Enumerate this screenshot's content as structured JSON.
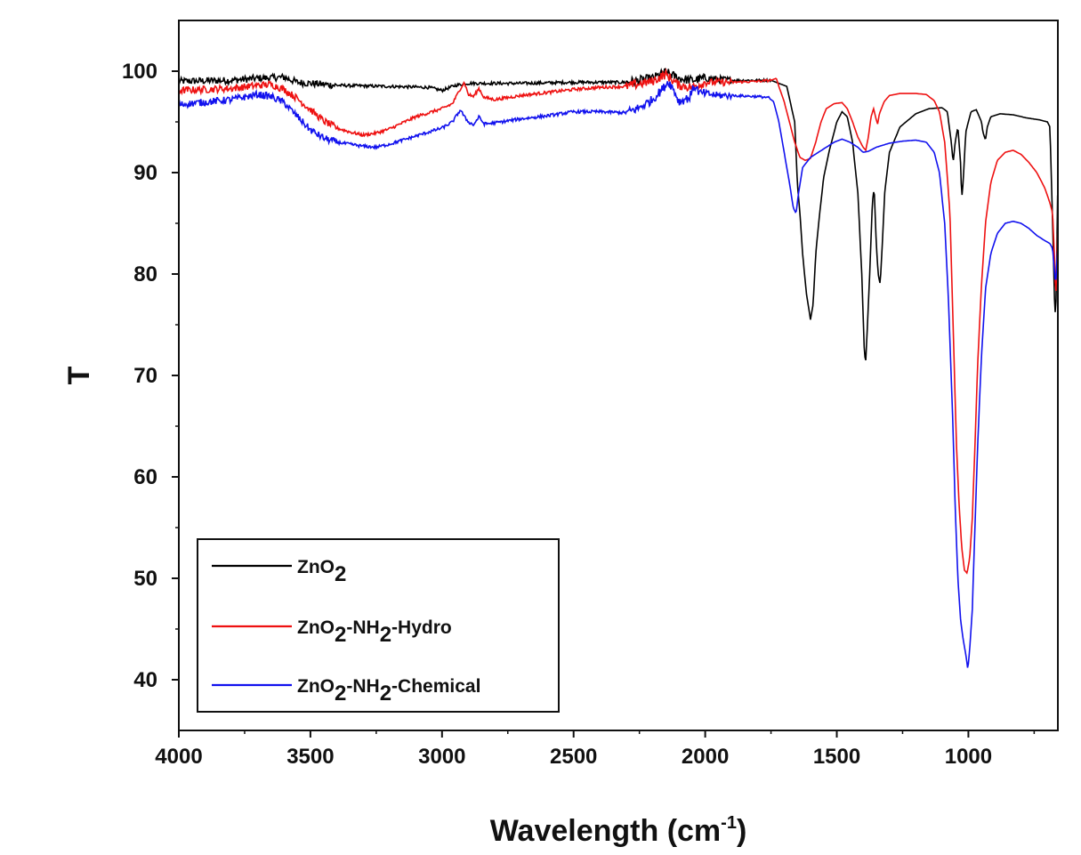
{
  "chart_data": {
    "type": "line",
    "title": "",
    "xlabel": {
      "main": "Wavelength (cm",
      "sup": "-1",
      "tail": ")"
    },
    "ylabel": "T",
    "xlim": [
      4000,
      660
    ],
    "ylim": [
      35,
      105
    ],
    "x_reversed": true,
    "x_ticks": [
      4000,
      3500,
      3000,
      2500,
      2000,
      1500,
      1000
    ],
    "y_ticks": [
      40,
      50,
      60,
      70,
      80,
      90,
      100
    ],
    "grid": false,
    "legend_position": "bottom-left",
    "series": [
      {
        "name": {
          "parts": [
            [
              "ZnO",
              ""
            ],
            [
              "2",
              "sub"
            ]
          ]
        },
        "color": "#000000",
        "points": [
          [
            4000,
            99
          ],
          [
            3800,
            99.1
          ],
          [
            3700,
            99.3
          ],
          [
            3600,
            99.4
          ],
          [
            3550,
            98.9
          ],
          [
            3400,
            98.6
          ],
          [
            3200,
            98.5
          ],
          [
            3050,
            98.4
          ],
          [
            3000,
            98.1
          ],
          [
            2950,
            98.6
          ],
          [
            2900,
            98.8
          ],
          [
            2700,
            98.8
          ],
          [
            2500,
            98.9
          ],
          [
            2300,
            98.9
          ],
          [
            2200,
            99.3
          ],
          [
            2150,
            99.9
          ],
          [
            2100,
            99.3
          ],
          [
            2050,
            99.1
          ],
          [
            2000,
            99.3
          ],
          [
            1900,
            99.1
          ],
          [
            1750,
            99.1
          ],
          [
            1690,
            98.5
          ],
          [
            1660,
            95
          ],
          [
            1650,
            89
          ],
          [
            1640,
            86
          ],
          [
            1630,
            82
          ],
          [
            1615,
            78
          ],
          [
            1600,
            75.5
          ],
          [
            1590,
            77
          ],
          [
            1580,
            82
          ],
          [
            1565,
            86
          ],
          [
            1550,
            89.5
          ],
          [
            1530,
            92
          ],
          [
            1500,
            95
          ],
          [
            1480,
            96
          ],
          [
            1460,
            95.5
          ],
          [
            1440,
            93
          ],
          [
            1420,
            88
          ],
          [
            1405,
            80
          ],
          [
            1395,
            72
          ],
          [
            1390,
            71.5
          ],
          [
            1385,
            74
          ],
          [
            1375,
            80
          ],
          [
            1365,
            87
          ],
          [
            1358,
            88.5
          ],
          [
            1350,
            83
          ],
          [
            1343,
            80
          ],
          [
            1335,
            79
          ],
          [
            1327,
            83
          ],
          [
            1318,
            88
          ],
          [
            1300,
            92
          ],
          [
            1260,
            94.5
          ],
          [
            1200,
            95.8
          ],
          [
            1150,
            96.3
          ],
          [
            1100,
            96.4
          ],
          [
            1080,
            96
          ],
          [
            1065,
            93
          ],
          [
            1058,
            91
          ],
          [
            1050,
            93
          ],
          [
            1040,
            94.5
          ],
          [
            1030,
            91
          ],
          [
            1025,
            87.5
          ],
          [
            1020,
            89
          ],
          [
            1010,
            94
          ],
          [
            990,
            96
          ],
          [
            970,
            96.2
          ],
          [
            950,
            95
          ],
          [
            945,
            94
          ],
          [
            935,
            93.2
          ],
          [
            928,
            94.5
          ],
          [
            915,
            95.5
          ],
          [
            880,
            95.8
          ],
          [
            830,
            95.7
          ],
          [
            780,
            95.4
          ],
          [
            730,
            95.2
          ],
          [
            700,
            95
          ],
          [
            690,
            94.5
          ],
          [
            680,
            85
          ],
          [
            672,
            76.5
          ],
          [
            668,
            76
          ],
          [
            665,
            80
          ],
          [
            662,
            86
          ],
          [
            660,
            89.5
          ]
        ]
      },
      {
        "name": {
          "parts": [
            [
              "ZnO",
              ""
            ],
            [
              "2",
              "sub"
            ],
            [
              "-NH",
              ""
            ],
            [
              "2",
              "sub"
            ],
            [
              "-Hydro",
              ""
            ]
          ]
        },
        "color": "#ee1111",
        "points": [
          [
            4000,
            98.1
          ],
          [
            3800,
            98.3
          ],
          [
            3700,
            98.6
          ],
          [
            3650,
            98.7
          ],
          [
            3600,
            98.2
          ],
          [
            3550,
            97.3
          ],
          [
            3500,
            96.2
          ],
          [
            3450,
            95.1
          ],
          [
            3400,
            94.4
          ],
          [
            3350,
            94
          ],
          [
            3300,
            93.7
          ],
          [
            3250,
            93.9
          ],
          [
            3200,
            94.3
          ],
          [
            3150,
            94.9
          ],
          [
            3100,
            95.5
          ],
          [
            3050,
            95.9
          ],
          [
            3000,
            96.3
          ],
          [
            2960,
            96.8
          ],
          [
            2930,
            98.3
          ],
          [
            2915,
            98.9
          ],
          [
            2900,
            97.7
          ],
          [
            2880,
            97.5
          ],
          [
            2860,
            98.3
          ],
          [
            2840,
            97.4
          ],
          [
            2800,
            97.2
          ],
          [
            2700,
            97.6
          ],
          [
            2600,
            97.9
          ],
          [
            2500,
            98.2
          ],
          [
            2400,
            98.4
          ],
          [
            2300,
            98.5
          ],
          [
            2200,
            99
          ],
          [
            2150,
            99.7
          ],
          [
            2100,
            98.6
          ],
          [
            2050,
            98.4
          ],
          [
            2000,
            98.9
          ],
          [
            1900,
            98.9
          ],
          [
            1800,
            99
          ],
          [
            1750,
            99.1
          ],
          [
            1730,
            99.3
          ],
          [
            1720,
            98.5
          ],
          [
            1700,
            97
          ],
          [
            1680,
            95
          ],
          [
            1660,
            93
          ],
          [
            1640,
            91.5
          ],
          [
            1620,
            91.2
          ],
          [
            1600,
            91.4
          ],
          [
            1580,
            93
          ],
          [
            1560,
            95
          ],
          [
            1540,
            96.3
          ],
          [
            1510,
            96.8
          ],
          [
            1480,
            96.9
          ],
          [
            1460,
            96.3
          ],
          [
            1440,
            95
          ],
          [
            1420,
            93.5
          ],
          [
            1400,
            92.5
          ],
          [
            1390,
            92.2
          ],
          [
            1380,
            93.5
          ],
          [
            1370,
            95.5
          ],
          [
            1360,
            96.3
          ],
          [
            1350,
            95.2
          ],
          [
            1345,
            94.8
          ],
          [
            1338,
            95.8
          ],
          [
            1320,
            97
          ],
          [
            1300,
            97.6
          ],
          [
            1260,
            97.8
          ],
          [
            1200,
            97.8
          ],
          [
            1160,
            97.7
          ],
          [
            1130,
            97.1
          ],
          [
            1110,
            96
          ],
          [
            1090,
            93
          ],
          [
            1070,
            86
          ],
          [
            1055,
            72
          ],
          [
            1045,
            63
          ],
          [
            1035,
            57
          ],
          [
            1025,
            53
          ],
          [
            1015,
            50.8
          ],
          [
            1005,
            50.5
          ],
          [
            995,
            52
          ],
          [
            985,
            56
          ],
          [
            975,
            63
          ],
          [
            965,
            71
          ],
          [
            950,
            79
          ],
          [
            935,
            85
          ],
          [
            915,
            89
          ],
          [
            890,
            91.2
          ],
          [
            860,
            92
          ],
          [
            830,
            92.2
          ],
          [
            800,
            91.8
          ],
          [
            770,
            91
          ],
          [
            740,
            90
          ],
          [
            710,
            88.5
          ],
          [
            690,
            87
          ],
          [
            680,
            86
          ],
          [
            672,
            81
          ],
          [
            668,
            77.5
          ],
          [
            665,
            80
          ],
          [
            662,
            83
          ],
          [
            660,
            85
          ]
        ]
      },
      {
        "name": {
          "parts": [
            [
              "ZnO",
              ""
            ],
            [
              "2",
              "sub"
            ],
            [
              "-NH",
              ""
            ],
            [
              "2",
              "sub"
            ],
            [
              "-Chemical",
              ""
            ]
          ]
        },
        "color": "#1111ee",
        "points": [
          [
            4000,
            96.7
          ],
          [
            3800,
            97.2
          ],
          [
            3700,
            97.7
          ],
          [
            3650,
            97.5
          ],
          [
            3600,
            96.9
          ],
          [
            3560,
            95.8
          ],
          [
            3500,
            94.2
          ],
          [
            3450,
            93.4
          ],
          [
            3400,
            93
          ],
          [
            3350,
            92.8
          ],
          [
            3300,
            92.6
          ],
          [
            3250,
            92.5
          ],
          [
            3200,
            92.8
          ],
          [
            3150,
            93.2
          ],
          [
            3100,
            93.6
          ],
          [
            3050,
            94
          ],
          [
            3000,
            94.4
          ],
          [
            2960,
            95
          ],
          [
            2930,
            96.2
          ],
          [
            2915,
            95.5
          ],
          [
            2900,
            95
          ],
          [
            2880,
            94.7
          ],
          [
            2860,
            95.5
          ],
          [
            2840,
            94.8
          ],
          [
            2800,
            94.9
          ],
          [
            2700,
            95.3
          ],
          [
            2600,
            95.6
          ],
          [
            2500,
            96
          ],
          [
            2400,
            96
          ],
          [
            2300,
            95.9
          ],
          [
            2250,
            96.4
          ],
          [
            2200,
            97.2
          ],
          [
            2160,
            98.3
          ],
          [
            2140,
            99
          ],
          [
            2120,
            98.2
          ],
          [
            2100,
            97
          ],
          [
            2060,
            97.4
          ],
          [
            2040,
            98.6
          ],
          [
            2020,
            97.8
          ],
          [
            2000,
            97.8
          ],
          [
            1950,
            97.6
          ],
          [
            1900,
            97.6
          ],
          [
            1800,
            97.5
          ],
          [
            1760,
            97.4
          ],
          [
            1740,
            97
          ],
          [
            1720,
            95
          ],
          [
            1700,
            92
          ],
          [
            1680,
            89
          ],
          [
            1665,
            86.5
          ],
          [
            1655,
            86
          ],
          [
            1645,
            88
          ],
          [
            1630,
            90.5
          ],
          [
            1600,
            91.5
          ],
          [
            1570,
            92
          ],
          [
            1540,
            92.5
          ],
          [
            1510,
            93
          ],
          [
            1480,
            93.3
          ],
          [
            1450,
            93
          ],
          [
            1420,
            92.5
          ],
          [
            1400,
            92
          ],
          [
            1380,
            92.1
          ],
          [
            1350,
            92.5
          ],
          [
            1300,
            92.9
          ],
          [
            1250,
            93.1
          ],
          [
            1200,
            93.2
          ],
          [
            1160,
            93
          ],
          [
            1130,
            92
          ],
          [
            1110,
            90
          ],
          [
            1090,
            85
          ],
          [
            1075,
            77
          ],
          [
            1060,
            66
          ],
          [
            1050,
            57
          ],
          [
            1040,
            50
          ],
          [
            1030,
            46
          ],
          [
            1020,
            44
          ],
          [
            1010,
            42.5
          ],
          [
            1002,
            41
          ],
          [
            995,
            43
          ],
          [
            985,
            47
          ],
          [
            975,
            55
          ],
          [
            965,
            63
          ],
          [
            950,
            72
          ],
          [
            935,
            78.5
          ],
          [
            915,
            82
          ],
          [
            890,
            84
          ],
          [
            860,
            85
          ],
          [
            830,
            85.2
          ],
          [
            800,
            85
          ],
          [
            770,
            84.5
          ],
          [
            740,
            83.8
          ],
          [
            710,
            83.3
          ],
          [
            690,
            83
          ],
          [
            680,
            82.5
          ],
          [
            672,
            80
          ],
          [
            668,
            79
          ],
          [
            665,
            80.5
          ],
          [
            662,
            82
          ],
          [
            660,
            82.5
          ]
        ]
      }
    ]
  }
}
